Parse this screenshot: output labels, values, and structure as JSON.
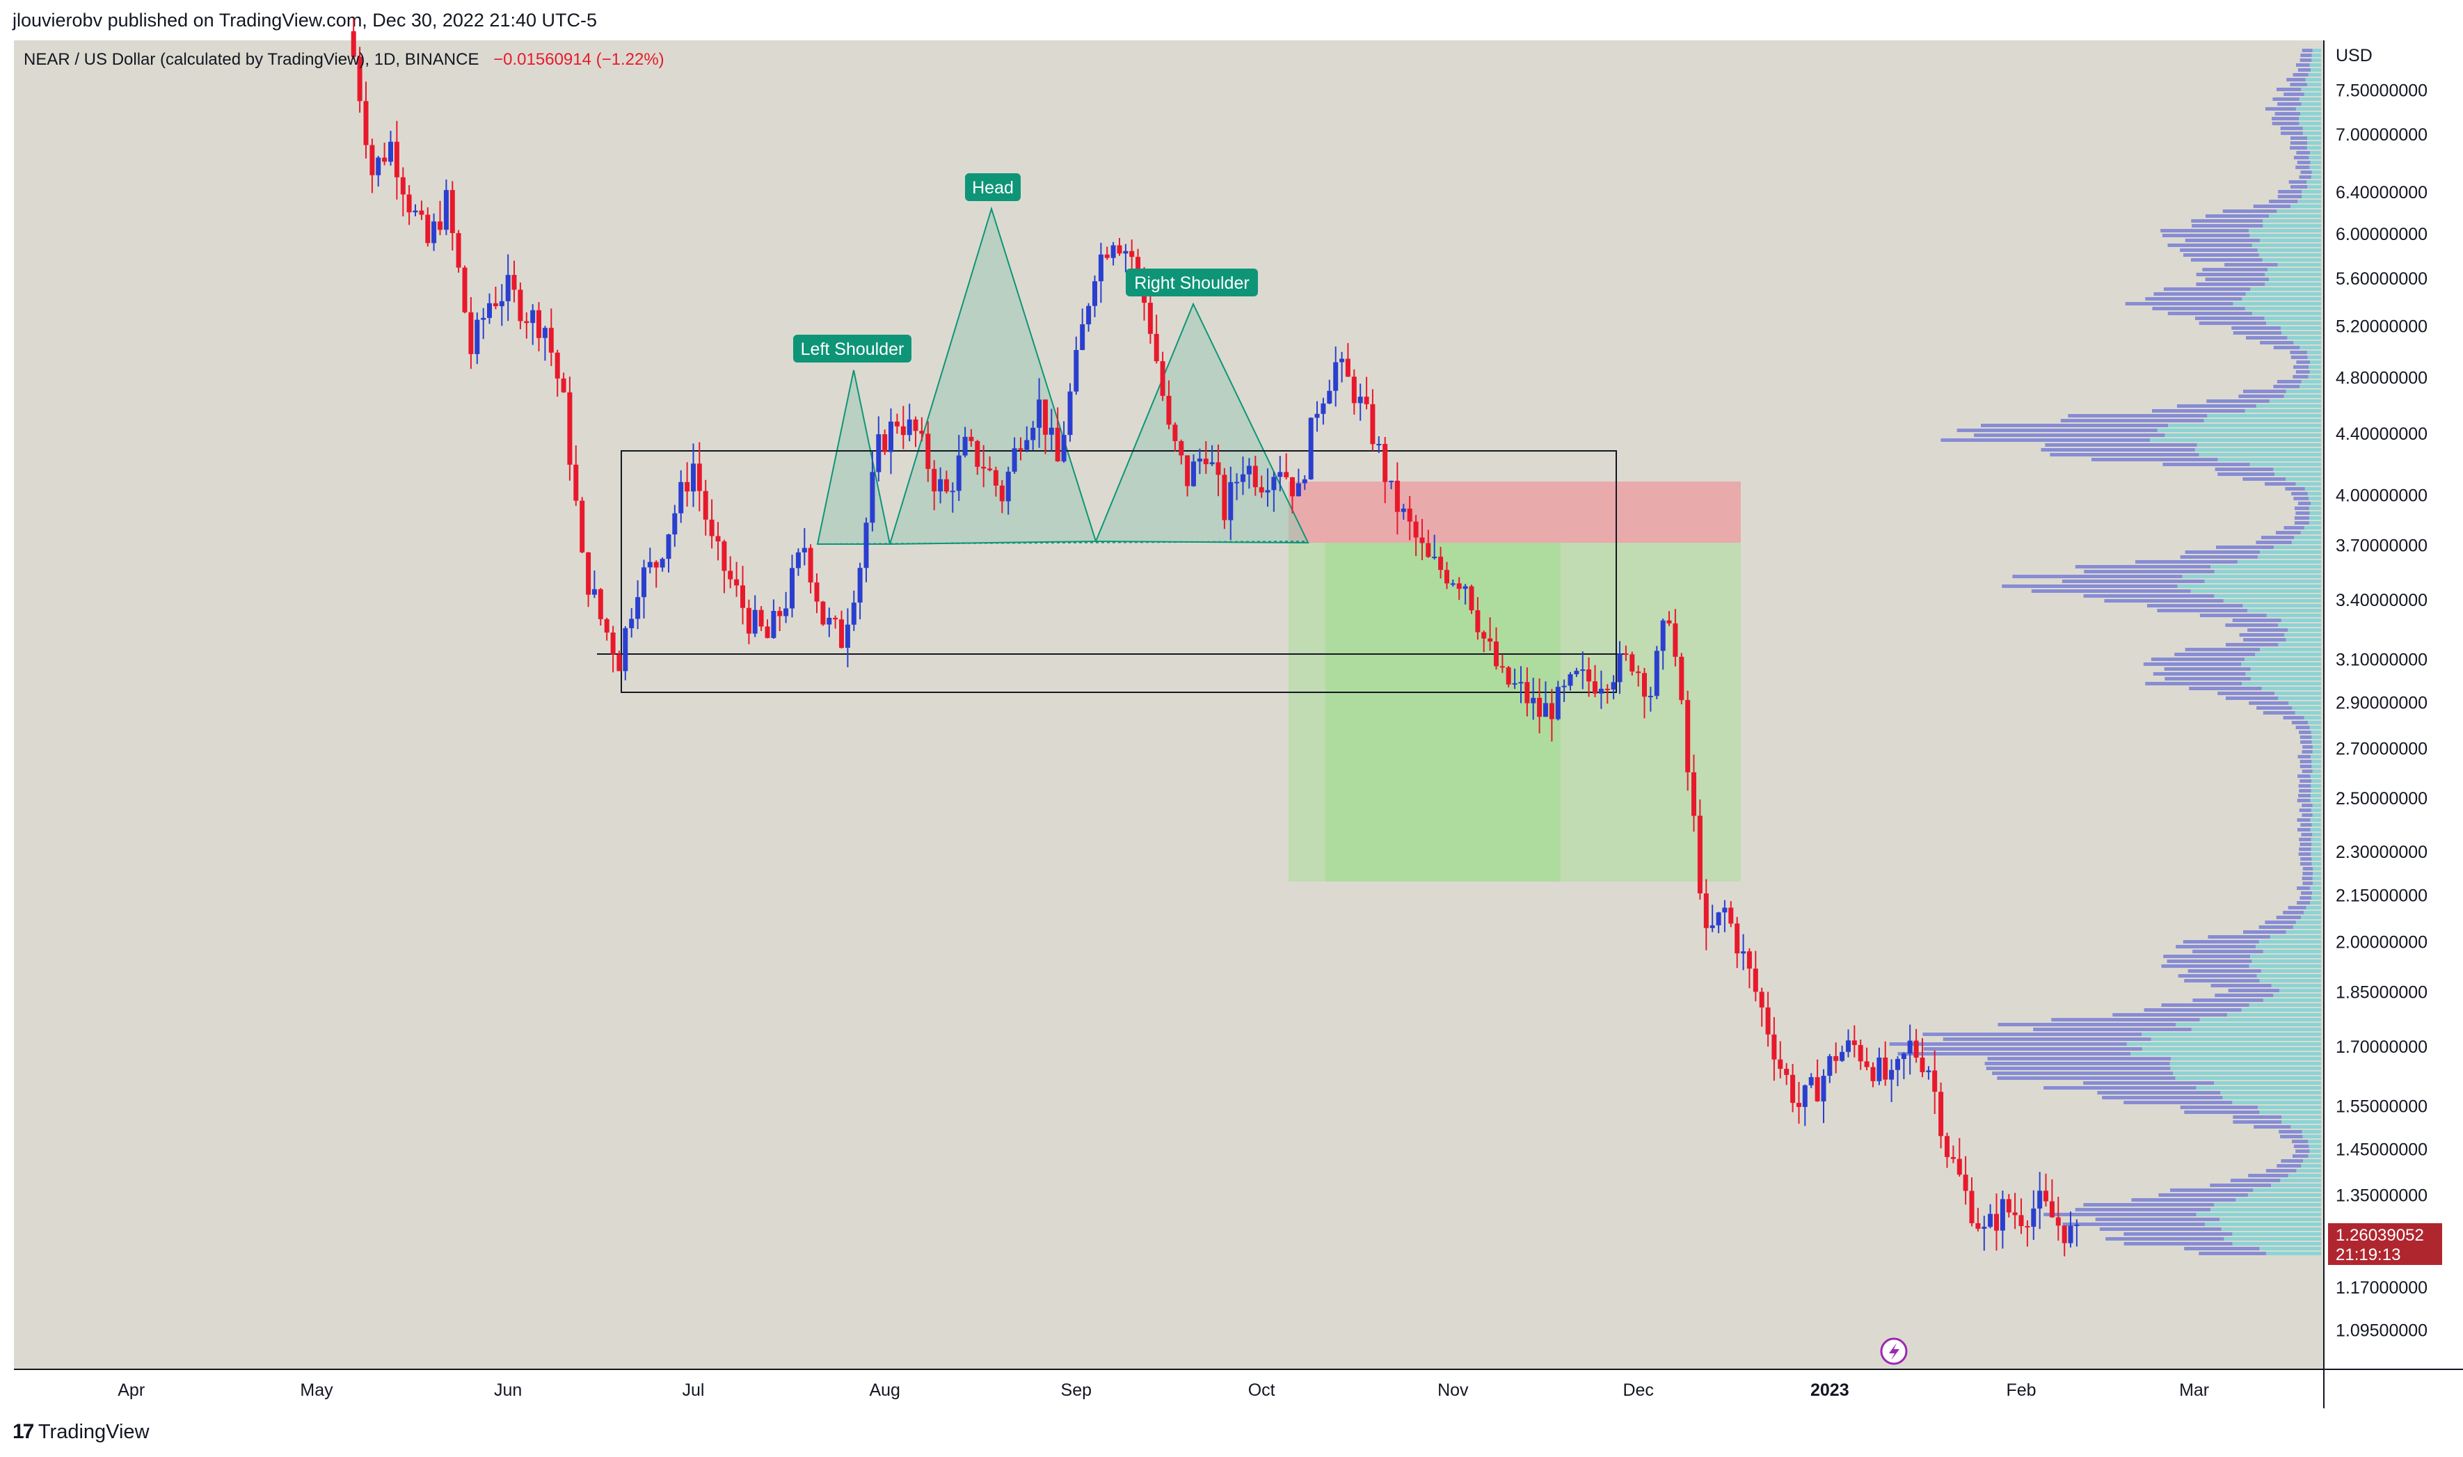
{
  "header": {
    "publisher": "jlouvierobv published on TradingView.com, Dec 30, 2022 21:40 UTC-5",
    "symbol": "NEAR / US Dollar (calculated by TradingView), 1D, BINANCE",
    "change": "−0.01560914 (−1.22%)"
  },
  "footer": {
    "logo_text": "TradingView"
  },
  "colors": {
    "background": "#dcdad0",
    "up_candle": "#2a3fcf",
    "down_candle": "#e8192c",
    "pattern_fill": "#9cc9b6",
    "target_zone": "#9fdc8f",
    "stop_zone": "#ec9ea3",
    "volume_profile_blue": "#6b72d6",
    "volume_profile_cyan": "#5fcfd6",
    "label_bg": "#0e9577",
    "price_tag": "#b0262f"
  },
  "chart_data": {
    "type": "candlestick",
    "interval": "1D",
    "y_unit": "USD",
    "y_scale": "log",
    "ylim": [
      1.03,
      8.1
    ],
    "x_range": [
      "2022-03-13",
      "2023-03-22"
    ],
    "grid": false,
    "x_ticks": [
      "Apr",
      "May",
      "Jun",
      "Jul",
      "Aug",
      "Sep",
      "Oct",
      "Nov",
      "Dec",
      "2023",
      "Feb",
      "Mar"
    ],
    "y_ticks": [
      "7.50000000",
      "7.00000000",
      "6.40000000",
      "6.00000000",
      "5.60000000",
      "5.20000000",
      "4.80000000",
      "4.40000000",
      "4.00000000",
      "3.70000000",
      "3.40000000",
      "3.10000000",
      "2.90000000",
      "2.70000000",
      "2.50000000",
      "2.30000000",
      "2.15000000",
      "2.00000000",
      "1.85000000",
      "1.70000000",
      "1.55000000",
      "1.45000000",
      "1.35000000",
      "1.17000000",
      "1.09500000"
    ],
    "current_price": "1.26039052",
    "countdown": "21:19:13",
    "annotations": [
      {
        "text": "Left Shoulder",
        "date": "2022-07-21",
        "price": 4.7
      },
      {
        "text": "Head",
        "date": "2022-08-12",
        "price": 6.15
      },
      {
        "text": "Right Shoulder",
        "date": "2022-09-13",
        "price": 5.25
      }
    ],
    "price_path": [
      [
        "2022-05-07",
        7.9
      ],
      [
        "2022-05-10",
        6.6
      ],
      [
        "2022-05-13",
        6.9
      ],
      [
        "2022-05-16",
        6.3
      ],
      [
        "2022-05-19",
        5.9
      ],
      [
        "2022-05-22",
        6.3
      ],
      [
        "2022-05-26",
        5.0
      ],
      [
        "2022-05-29",
        5.4
      ],
      [
        "2022-06-01",
        5.5
      ],
      [
        "2022-06-04",
        5.3
      ],
      [
        "2022-06-07",
        5.2
      ],
      [
        "2022-06-10",
        4.6
      ],
      [
        "2022-06-13",
        3.6
      ],
      [
        "2022-06-16",
        3.3
      ],
      [
        "2022-06-19",
        3.1
      ],
      [
        "2022-06-22",
        3.5
      ],
      [
        "2022-06-25",
        3.6
      ],
      [
        "2022-06-28",
        3.9
      ],
      [
        "2022-07-01",
        4.2
      ],
      [
        "2022-07-04",
        3.7
      ],
      [
        "2022-07-07",
        3.5
      ],
      [
        "2022-07-10",
        3.3
      ],
      [
        "2022-07-13",
        3.2
      ],
      [
        "2022-07-16",
        3.4
      ],
      [
        "2022-07-19",
        3.7
      ],
      [
        "2022-07-22",
        3.3
      ],
      [
        "2022-07-25",
        3.2
      ],
      [
        "2022-07-28",
        3.6
      ],
      [
        "2022-07-31",
        4.3
      ],
      [
        "2022-08-03",
        4.5
      ],
      [
        "2022-08-06",
        4.4
      ],
      [
        "2022-08-09",
        4.1
      ],
      [
        "2022-08-11",
        4.0
      ],
      [
        "2022-08-14",
        4.3
      ],
      [
        "2022-08-17",
        4.2
      ],
      [
        "2022-08-20",
        4.0
      ],
      [
        "2022-08-23",
        4.4
      ],
      [
        "2022-08-26",
        4.6
      ],
      [
        "2022-08-29",
        4.2
      ],
      [
        "2022-09-01",
        4.9
      ],
      [
        "2022-09-04",
        5.7
      ],
      [
        "2022-09-07",
        6.0
      ],
      [
        "2022-09-10",
        5.8
      ],
      [
        "2022-09-13",
        5.2
      ],
      [
        "2022-09-16",
        4.4
      ],
      [
        "2022-09-19",
        4.1
      ],
      [
        "2022-09-22",
        4.3
      ],
      [
        "2022-09-25",
        3.9
      ],
      [
        "2022-09-28",
        4.2
      ],
      [
        "2022-10-01",
        4.1
      ],
      [
        "2022-10-04",
        4.2
      ],
      [
        "2022-10-07",
        4.0
      ],
      [
        "2022-10-10",
        4.6
      ],
      [
        "2022-10-13",
        4.9
      ],
      [
        "2022-10-16",
        4.7
      ],
      [
        "2022-10-19",
        4.4
      ],
      [
        "2022-10-22",
        4.0
      ],
      [
        "2022-10-25",
        3.8
      ],
      [
        "2022-10-28",
        3.6
      ],
      [
        "2022-10-31",
        3.55
      ],
      [
        "2022-11-03",
        3.5
      ],
      [
        "2022-11-06",
        3.2
      ],
      [
        "2022-11-09",
        3.0
      ],
      [
        "2022-11-12",
        2.95
      ],
      [
        "2022-11-15",
        2.85
      ],
      [
        "2022-11-18",
        2.9
      ],
      [
        "2022-11-21",
        3.0
      ],
      [
        "2022-11-24",
        3.0
      ],
      [
        "2022-11-27",
        3.05
      ],
      [
        "2022-11-30",
        3.1
      ],
      [
        "2022-12-03",
        2.95
      ],
      [
        "2022-12-06",
        3.35
      ],
      [
        "2022-12-09",
        2.6
      ],
      [
        "2022-12-12",
        2.0
      ],
      [
        "2022-12-15",
        2.1
      ],
      [
        "2022-12-18",
        1.95
      ],
      [
        "2022-12-21",
        1.8
      ],
      [
        "2022-12-24",
        1.65
      ],
      [
        "2022-12-27",
        1.55
      ],
      [
        "2022-12-30",
        1.6
      ],
      [
        "2023-01-02",
        1.68
      ],
      [
        "2023-01-05",
        1.7
      ],
      [
        "2023-01-08",
        1.65
      ],
      [
        "2023-01-11",
        1.6
      ],
      [
        "2023-01-14",
        1.7
      ],
      [
        "2023-01-17",
        1.65
      ],
      [
        "2023-01-20",
        1.45
      ],
      [
        "2023-01-23",
        1.35
      ],
      [
        "2023-01-26",
        1.27
      ],
      [
        "2023-01-29",
        1.32
      ],
      [
        "2023-02-01",
        1.31
      ],
      [
        "2023-02-04",
        1.33
      ],
      [
        "2023-02-07",
        1.29
      ],
      [
        "2023-02-10",
        1.26
      ]
    ]
  }
}
